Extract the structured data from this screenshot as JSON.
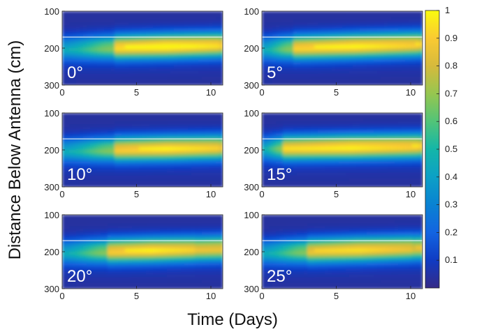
{
  "chart_data": {
    "type": "heatmap",
    "xlabel": "Time (Days)",
    "ylabel": "Distance Below Antenna (cm)",
    "x_ticks": [
      0,
      5,
      10
    ],
    "y_ticks": [
      100,
      200,
      300
    ],
    "xlim": [
      0,
      10.8
    ],
    "ylim": [
      100,
      300
    ],
    "reference_line_depth": 170,
    "colorbar": {
      "range": [
        0,
        1
      ],
      "ticks": [
        "0.1",
        "0.2",
        "0.3",
        "0.4",
        "0.5",
        "0.6",
        "0.7",
        "0.8",
        "0.9",
        "1"
      ],
      "colormap": "parula"
    },
    "panels": [
      {
        "label": "0°",
        "center_start": 200,
        "center_end": 190,
        "hot_start_day": 3.5,
        "hot_end_day": 10.5,
        "peak": 0.93
      },
      {
        "label": "5°",
        "center_start": 200,
        "center_end": 188,
        "hot_start_day": 2.0,
        "hot_end_day": 10.5,
        "peak": 0.9
      },
      {
        "label": "10°",
        "center_start": 200,
        "center_end": 192,
        "hot_start_day": 3.5,
        "hot_end_day": 10.5,
        "peak": 0.88
      },
      {
        "label": "15°",
        "center_start": 195,
        "center_end": 188,
        "hot_start_day": 1.5,
        "hot_end_day": 10.5,
        "peak": 0.9
      },
      {
        "label": "20°",
        "center_start": 200,
        "center_end": 190,
        "hot_start_day": 3.0,
        "hot_end_day": 9.0,
        "peak": 0.88
      },
      {
        "label": "25°",
        "center_start": 200,
        "center_end": 188,
        "hot_start_day": 3.0,
        "hot_end_day": 10.0,
        "peak": 0.85
      }
    ]
  },
  "colors": {
    "background": "#ffffff",
    "reference_line": "#ffffff",
    "panel_label": "#ffffff"
  }
}
